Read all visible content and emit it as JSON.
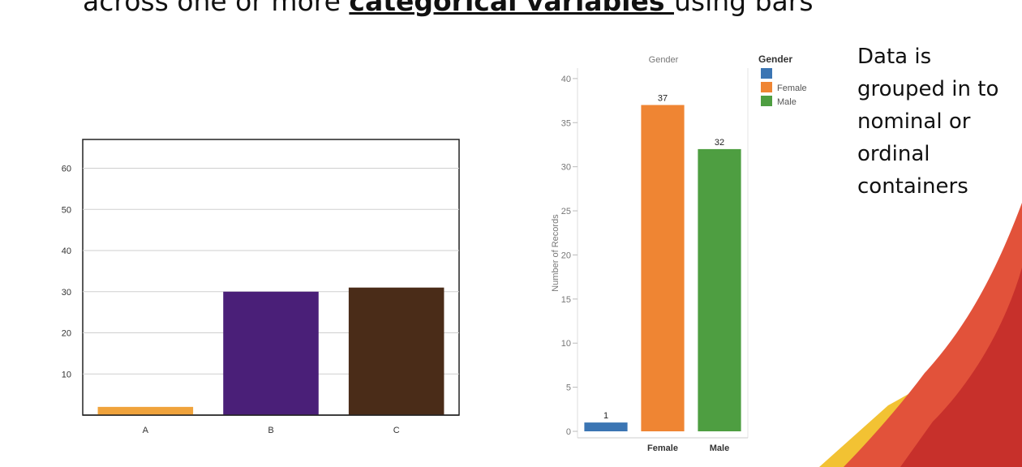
{
  "slide": {
    "title_prefix": "across one or more ",
    "title_emphasis": "categorical variables ",
    "title_suffix": "using bars",
    "side_text": [
      "Data is",
      "grouped in to",
      "nominal or",
      "ordinal",
      "containers"
    ]
  },
  "chart_data": [
    {
      "type": "bar",
      "categories": [
        "A",
        "B",
        "C"
      ],
      "values": [
        2,
        30,
        31
      ],
      "colors": [
        "#f0a33c",
        "#4a1f78",
        "#4a2c18"
      ],
      "yticks": [
        10,
        20,
        30,
        40,
        50,
        60
      ],
      "ylim": [
        0,
        67
      ],
      "grid": true,
      "title": "",
      "xlabel": "",
      "ylabel": ""
    },
    {
      "type": "bar",
      "title": "Gender",
      "ylabel": "Number of Records",
      "categories": [
        "",
        "Female",
        "Male"
      ],
      "values": [
        1,
        37,
        32
      ],
      "data_labels": [
        "1",
        "37",
        "32"
      ],
      "colors": [
        "#3b75b3",
        "#ef8533",
        "#4e9e41"
      ],
      "yticks": [
        0,
        5,
        10,
        15,
        20,
        25,
        30,
        35,
        40
      ],
      "ylim": [
        0,
        41
      ],
      "legend": {
        "title": "Gender",
        "position": "right",
        "items": [
          {
            "label": "",
            "color": "#3b75b3"
          },
          {
            "label": "Female",
            "color": "#ef8533"
          },
          {
            "label": "Male",
            "color": "#4e9e41"
          }
        ]
      }
    }
  ]
}
